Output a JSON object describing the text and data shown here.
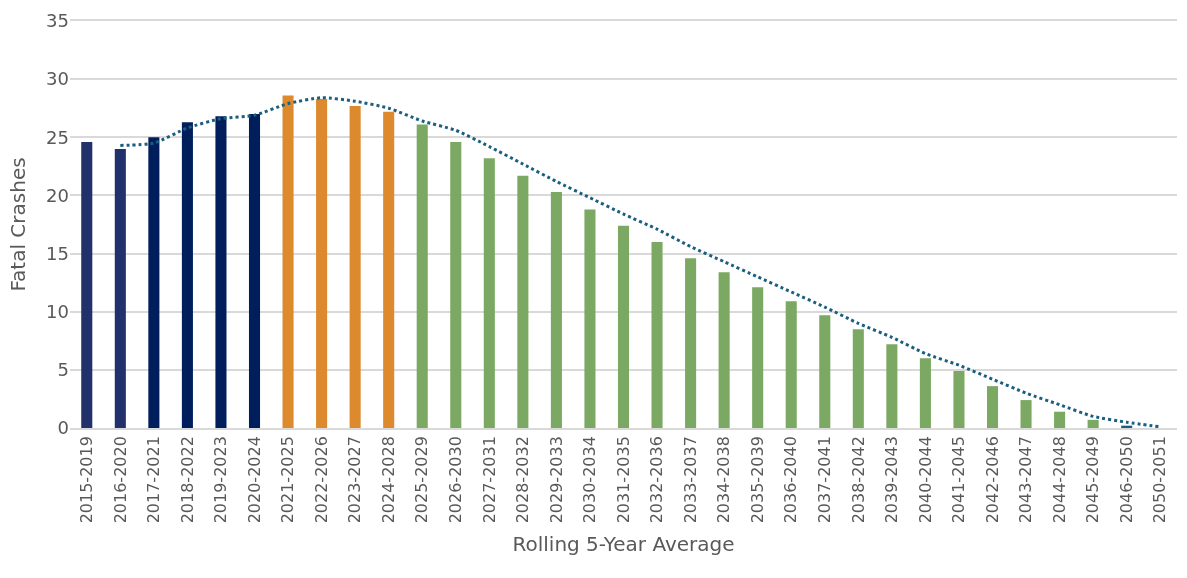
{
  "chart_data": {
    "type": "bar",
    "xlabel": "Rolling 5-Year Average",
    "ylabel": "Fatal Crashes",
    "categories": [
      "2015-2019",
      "2016-2020",
      "2017-2021",
      "2018-2022",
      "2019-2023",
      "2020-2024",
      "2021-2025",
      "2022-2026",
      "2023-2027",
      "2024-2028",
      "2025-2029",
      "2026-2030",
      "2027-2031",
      "2028-2032",
      "2029-2033",
      "2030-2034",
      "2031-2035",
      "2032-2036",
      "2033-2037",
      "2034-2038",
      "2035-2039",
      "2036-2040",
      "2037-2041",
      "2038-2042",
      "2039-2043",
      "2040-2044",
      "2041-2045",
      "2042-2046",
      "2043-2047",
      "2044-2048",
      "2045-2049",
      "2046-2050",
      "2050-2051"
    ],
    "series": [
      {
        "values": [
          24.6,
          24.0,
          25.0,
          26.3,
          26.8,
          27.0,
          28.6,
          28.3,
          27.7,
          27.2,
          26.1,
          24.6,
          23.2,
          21.7,
          20.3,
          18.8,
          17.4,
          16.0,
          14.6,
          13.4,
          12.1,
          10.9,
          9.7,
          8.5,
          7.2,
          6.0,
          4.9,
          3.6,
          2.4,
          1.4,
          0.7,
          0.2,
          0
        ],
        "colors": [
          "#22306b",
          "#22306b",
          "#001e5b",
          "#001e5b",
          "#001e5b",
          "#001e5b",
          "#dd8a2f",
          "#dd8a2f",
          "#dd8a2f",
          "#dd8a2f",
          "#7ba862",
          "#7ba862",
          "#7ba862",
          "#7ba862",
          "#7ba862",
          "#7ba862",
          "#7ba862",
          "#7ba862",
          "#7ba862",
          "#7ba862",
          "#7ba862",
          "#7ba862",
          "#7ba862",
          "#7ba862",
          "#7ba862",
          "#7ba862",
          "#7ba862",
          "#7ba862",
          "#7ba862",
          "#7ba862",
          "#7ba862",
          "#1f5c82",
          "#1f5c82"
        ]
      },
      {
        "type": "line",
        "color": "#1a5e80",
        "line_style": "dotted",
        "marker": "none",
        "values": [
          null,
          24.3,
          24.5,
          25.8,
          26.6,
          26.9,
          27.9,
          28.4,
          28.1,
          27.5,
          26.4,
          25.6,
          24.2,
          22.7,
          21.2,
          19.8,
          18.4,
          17.1,
          15.6,
          14.3,
          13.0,
          11.7,
          10.4,
          9.0,
          7.8,
          6.4,
          5.4,
          4.2,
          3.0,
          2.0,
          1.0,
          0.5,
          0.1
        ]
      }
    ],
    "ylim": [
      0,
      35
    ],
    "yticks": [
      0,
      5,
      10,
      15,
      20,
      25,
      30,
      35
    ],
    "grid": "y"
  }
}
